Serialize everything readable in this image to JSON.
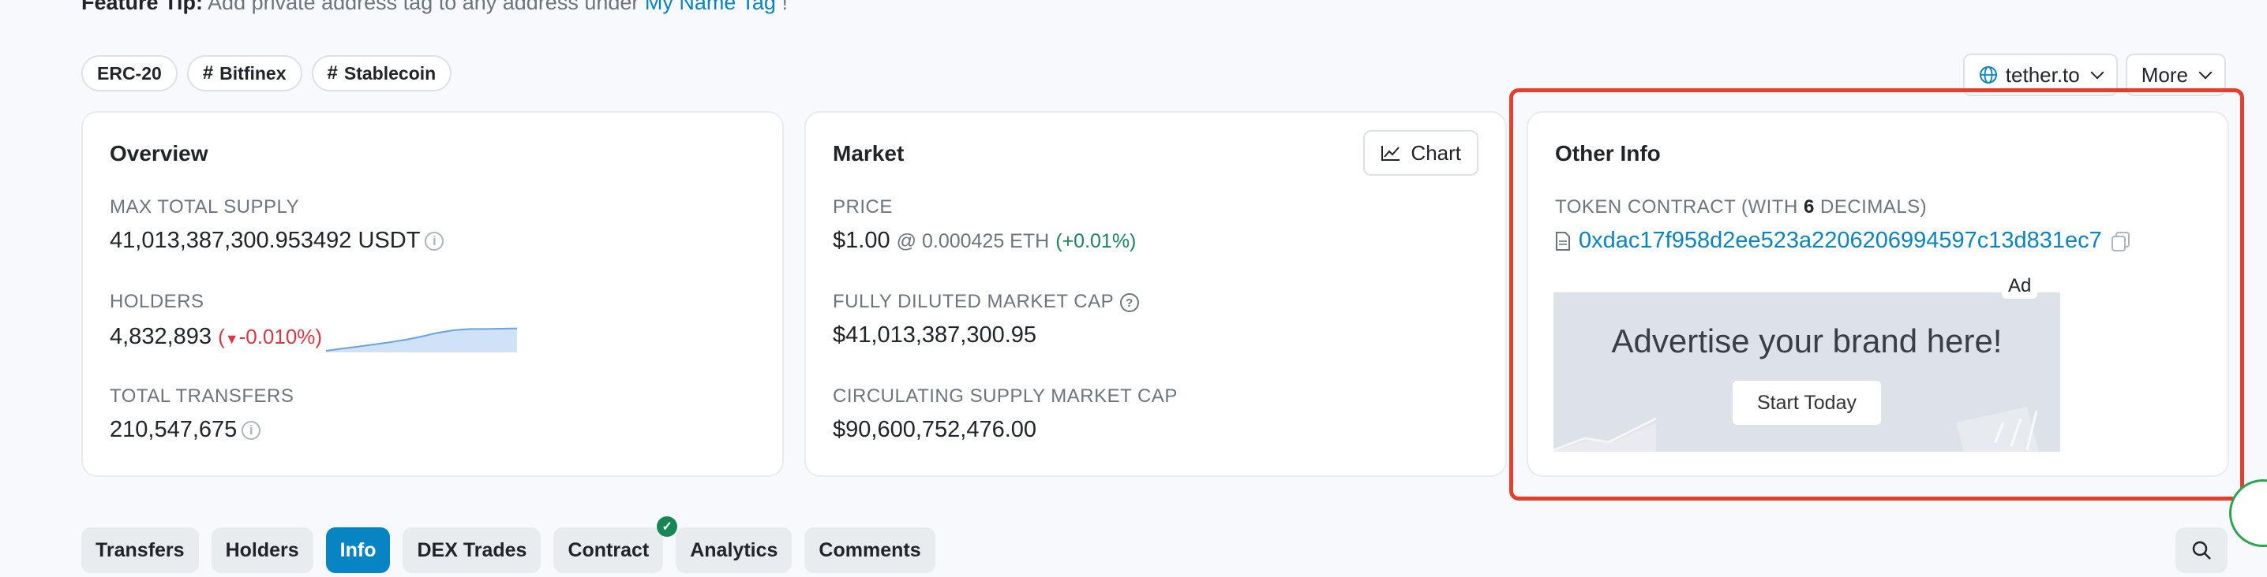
{
  "feature_tip": {
    "label": "Feature Tip:",
    "text": " Add private address tag to any address under ",
    "link": "My Name Tag",
    "suffix": " !"
  },
  "tags": [
    "ERC-20",
    "Bitfinex",
    "Stablecoin"
  ],
  "header_buttons": {
    "website": "tether.to",
    "more": "More"
  },
  "overview": {
    "title": "Overview",
    "max_supply_label": "MAX TOTAL SUPPLY",
    "max_supply_value": "41,013,387,300.953492 USDT",
    "holders_label": "HOLDERS",
    "holders_value": "4,832,893",
    "holders_change": "-0.010%",
    "holders_sparkline": [
      0.05,
      0.12,
      0.18,
      0.25,
      0.32,
      0.4,
      0.5,
      0.62,
      0.7,
      0.74,
      0.74,
      0.75,
      0.76
    ],
    "transfers_label": "TOTAL TRANSFERS",
    "transfers_value": "210,547,675"
  },
  "market": {
    "title": "Market",
    "chart_button": "Chart",
    "price_label": "PRICE",
    "price_value": "$1.00",
    "price_eth": "@ 0.000425 ETH",
    "price_change": "(+0.01%)",
    "fdmc_label": "FULLY DILUTED MARKET CAP",
    "fdmc_value": "$41,013,387,300.95",
    "csmc_label": "CIRCULATING SUPPLY MARKET CAP",
    "csmc_value": "$90,600,752,476.00"
  },
  "other_info": {
    "title": "Other Info",
    "contract_label_pre": "TOKEN CONTRACT (WITH ",
    "contract_decimals": "6",
    "contract_label_post": " DECIMALS)",
    "contract_address": "0xdac17f958d2ee523a2206206994597c13d831ec7",
    "ad_badge": "Ad",
    "ad_title": "Advertise your brand here!",
    "ad_button": "Start Today"
  },
  "tabs": [
    {
      "label": "Transfers",
      "active": false
    },
    {
      "label": "Holders",
      "active": false
    },
    {
      "label": "Info",
      "active": true
    },
    {
      "label": "DEX Trades",
      "active": false
    },
    {
      "label": "Contract",
      "active": false,
      "verified": true
    },
    {
      "label": "Analytics",
      "active": false
    },
    {
      "label": "Comments",
      "active": false
    }
  ],
  "colors": {
    "accent": "#0784c3",
    "highlight_border": "#e53e2c",
    "negative": "#dc3545",
    "positive": "#198754"
  }
}
